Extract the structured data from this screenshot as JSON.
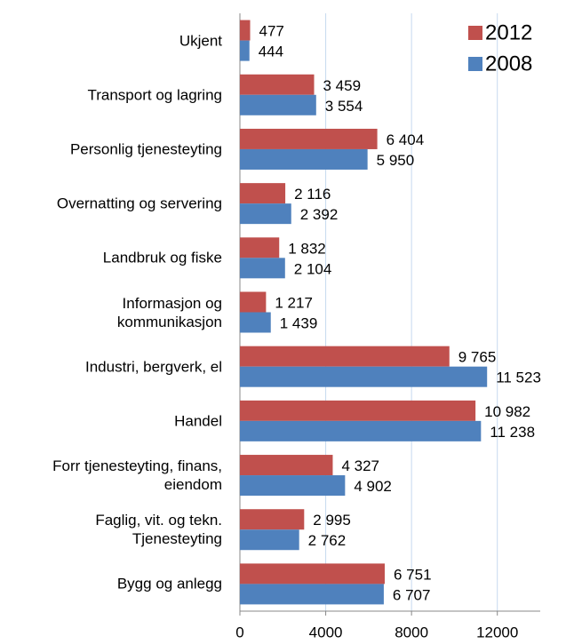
{
  "chart_data": {
    "type": "barh",
    "categories": [
      "Ukjent",
      "Transport og lagring",
      "Personlig tjenesteyting",
      "Overnatting og servering",
      "Landbruk og fiske",
      "Informasjon og \nkommunikasjon",
      "Industri, bergverk, el",
      "Handel",
      "Forr tjenesteyting, finans,\neiendom",
      "Faglig, vit. og tekn.\nTjenesteyting",
      "Bygg og anlegg"
    ],
    "series": [
      {
        "name": "2012",
        "color": "#c0504d",
        "values": [
          477,
          3459,
          6404,
          2116,
          1832,
          1217,
          9765,
          10982,
          4327,
          2995,
          6751
        ],
        "value_labels": [
          "477",
          "3 459",
          "6 404",
          "2 116",
          "1 832",
          "1 217",
          "9 765",
          "10 982",
          "4 327",
          "2 995",
          "6 751"
        ]
      },
      {
        "name": "2008",
        "color": "#4f81bd",
        "values": [
          444,
          3554,
          5950,
          2392,
          2104,
          1439,
          11523,
          11238,
          4902,
          2762,
          6707
        ],
        "value_labels": [
          "444",
          "3 554",
          "5 950",
          "2 392",
          "2 104",
          "1 439",
          "11 523",
          "11 238",
          "4 902",
          "2 762",
          "6 707"
        ]
      }
    ],
    "xlim": [
      0,
      14000
    ],
    "xticks": [
      0,
      4000,
      8000,
      12000
    ],
    "grid": true,
    "legend": "top-right"
  }
}
